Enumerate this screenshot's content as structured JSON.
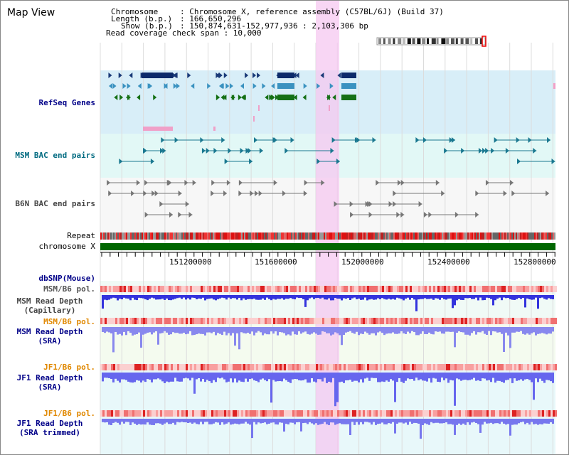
{
  "title": "Map View",
  "info": {
    "chromosome_key": "Chromosome",
    "chromosome_val": ": Chromosome X, reference assembly (C57BL/6J) (Build 37)",
    "length_key": "Length (b.p.)",
    "length_val": ": 166,650,296",
    "show_key": "Show (b.p.)",
    "show_val": ": 150,874,631-152,977,936 : 2,103,306 bp",
    "coverage": "Read coverage check span : 10,000"
  },
  "tracks": {
    "refseq": "RefSeq Genes",
    "msm_bac": "MSM BAC end pairs",
    "b6n_bac": "B6N BAC end pairs",
    "repeat": "Repeat",
    "chromosome": "chromosome X",
    "dbsnp": "dbSNP(Mouse)",
    "msm_pol": "MSM/B6 pol.",
    "msm_depth_cap_1": "MSM Read Depth",
    "msm_depth_cap_2": "(Capillary)",
    "msm_pol2": "MSM/B6 pol.",
    "msm_depth_sra_1": "MSM Read Depth",
    "msm_depth_sra_2": "(SRA)",
    "jf1_pol": "JF1/B6 pol.",
    "jf1_depth_1": "JF1 Read Depth",
    "jf1_depth_2": "(SRA)",
    "jf1_pol2": "JF1/B6 pol.",
    "jf1_trim_1": "JF1 Read Depth",
    "jf1_trim_2": "(SRA trimmed)"
  },
  "axis_ticks": [
    "151200000",
    "151600000",
    "152000000",
    "152400000",
    "152800000"
  ],
  "colors": {
    "refseq_bg": "#d8eef8",
    "msm_bac_bg": "#e2f8f6",
    "label_navy": "#000088",
    "label_teal": "#006a80",
    "label_gray": "#444444",
    "label_orange": "#e08800",
    "highlight": "#f5c8f0",
    "chromosome_bar": "#006600",
    "depth_blue": "#4444ee"
  }
}
